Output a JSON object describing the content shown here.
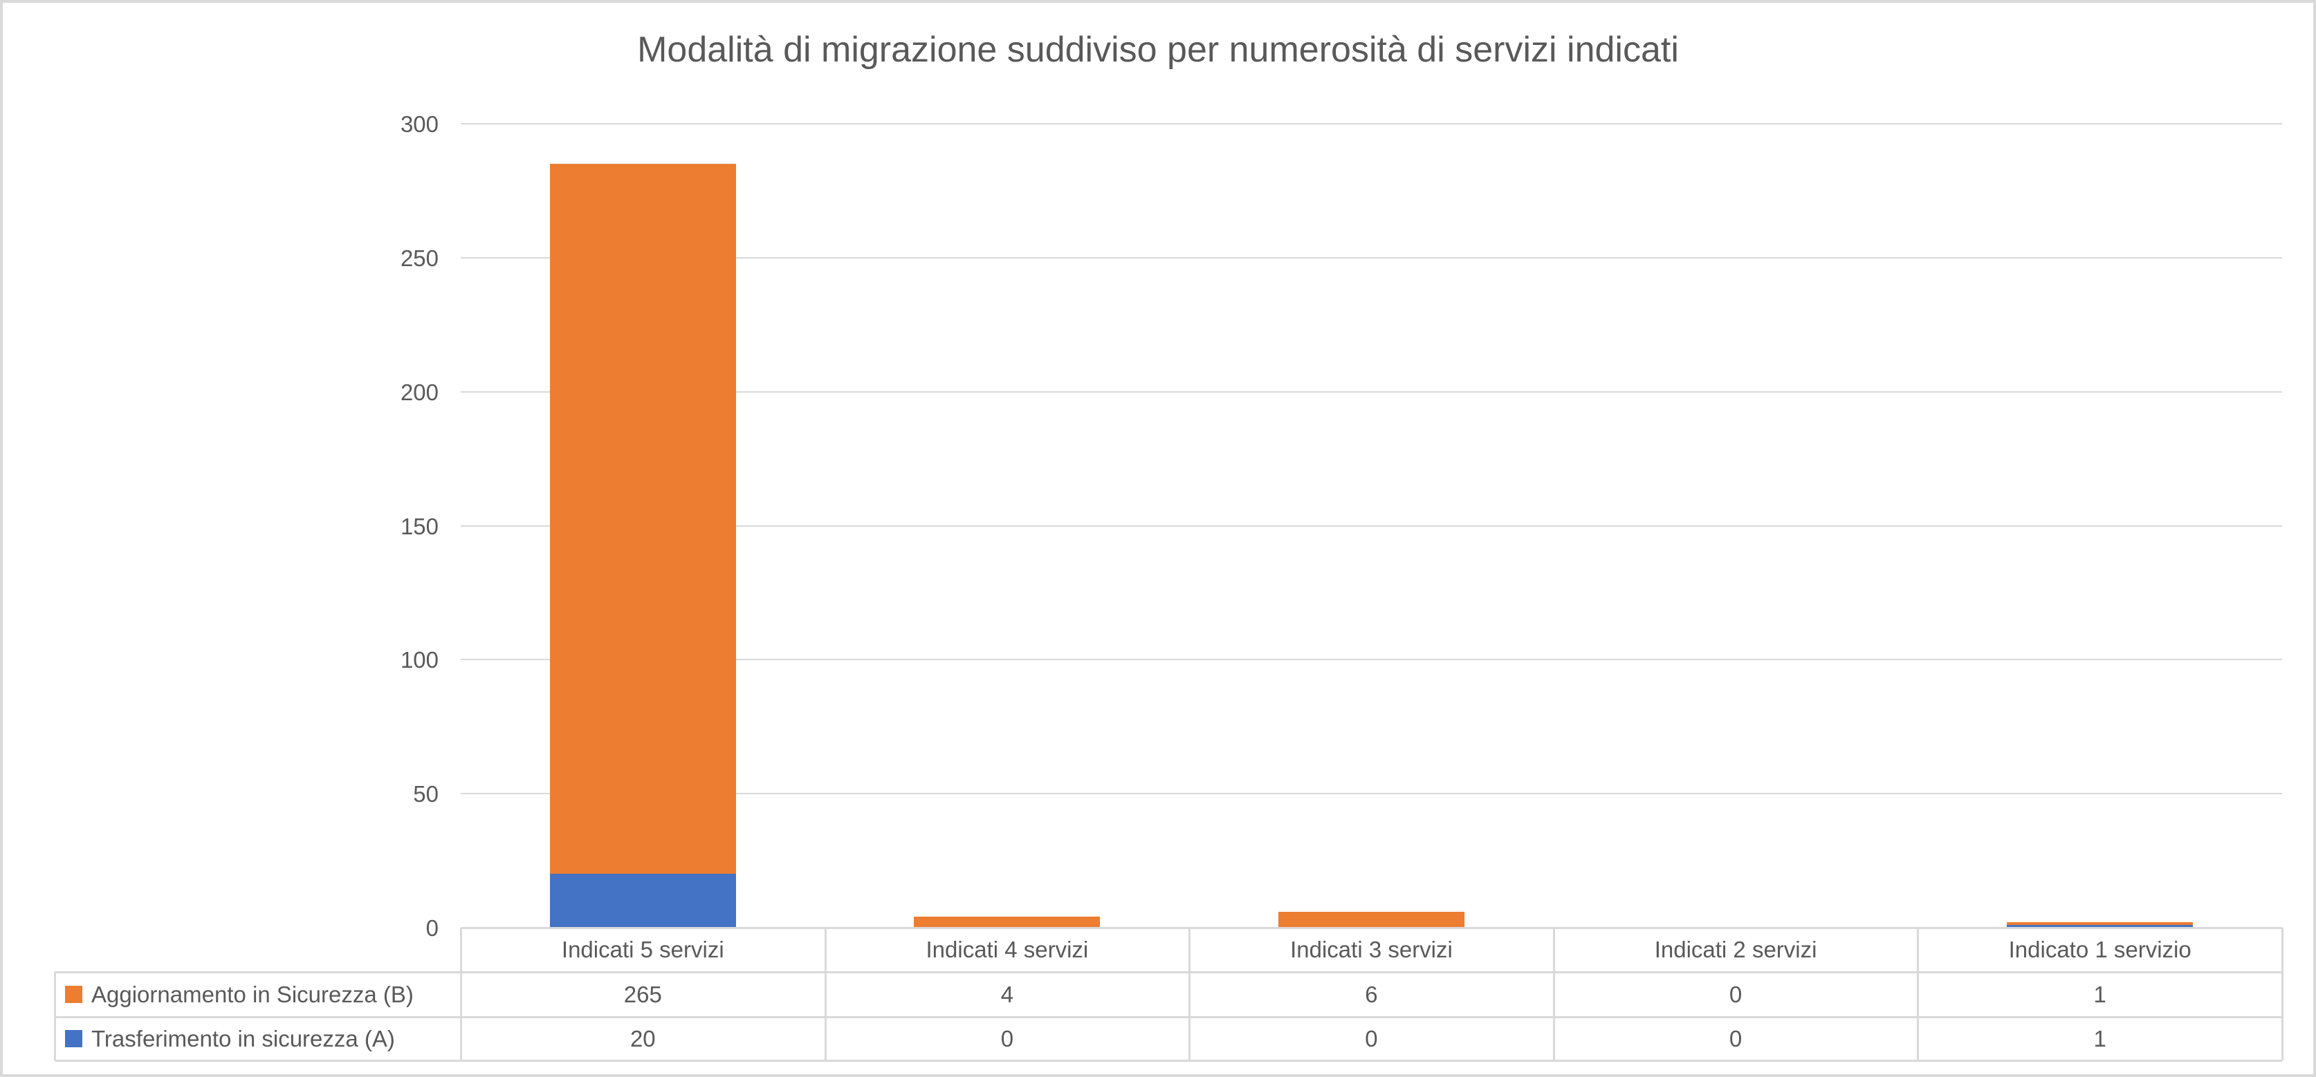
{
  "chart_data": {
    "type": "bar",
    "variant": "stacked-column",
    "title": "Modalità di migrazione suddiviso per numerosità di servizi indicati",
    "categories": [
      "Indicati 5 servizi",
      "Indicati 4 servizi",
      "Indicati 3 servizi",
      "Indicati 2 servizi",
      "Indicato 1 servizio"
    ],
    "series": [
      {
        "name": "Trasferimento in sicurezza (A)",
        "key": "trasferimento-in-sicurezza-a",
        "color": "#4472C4",
        "values": [
          20,
          0,
          0,
          0,
          1
        ]
      },
      {
        "name": "Aggiornamento in Sicurezza (B)",
        "key": "aggiornamento-in-sicurezza-b",
        "color": "#ED7D31",
        "values": [
          265,
          4,
          6,
          0,
          1
        ]
      }
    ],
    "y_axis": {
      "min": 0,
      "max": 300,
      "tick_interval": 50,
      "ticks": [
        300,
        250,
        200,
        150,
        100,
        50,
        0
      ]
    },
    "grid": true,
    "legend_position": "data-table-keys",
    "data_table": {
      "row_order": [
        "aggiornamento-in-sicurezza-b",
        "trasferimento-in-sicurezza-a"
      ],
      "rows": [
        {
          "label": "Aggiornamento in Sicurezza (B)",
          "key_color": "#ED7D31",
          "values": [
            "265",
            "4",
            "6",
            "0",
            "1"
          ]
        },
        {
          "label": "Trasferimento in sicurezza (A)",
          "key_color": "#4472C4",
          "values": [
            "20",
            "0",
            "0",
            "0",
            "1"
          ]
        }
      ]
    },
    "colors": {
      "text": "#595959",
      "gridline": "#D9D9D9",
      "table_border": "#D9D9D9",
      "frame_border": "#D9D9D9",
      "background": "#FFFFFF"
    }
  }
}
